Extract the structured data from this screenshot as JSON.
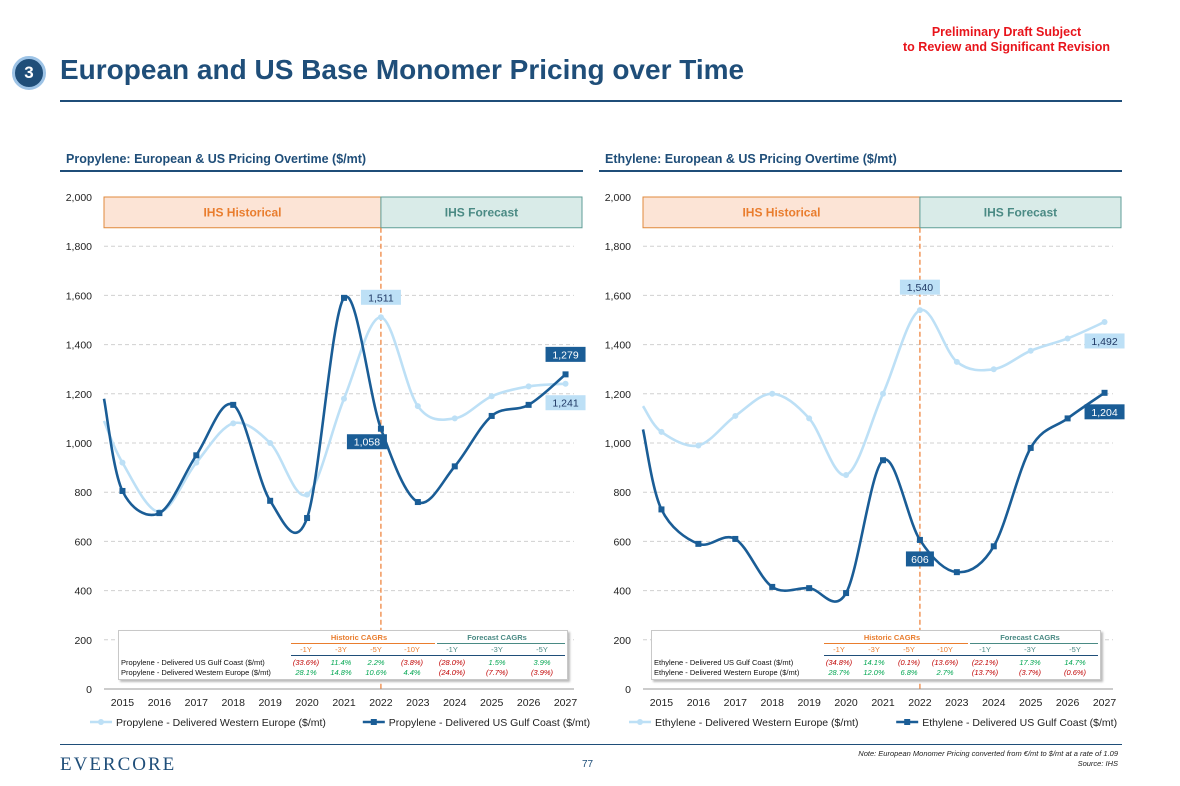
{
  "header": {
    "badge": "3",
    "title": "European and US Base Monomer Pricing over Time",
    "draft_line1": "Preliminary Draft Subject",
    "draft_line2": "to Review and Significant Revision"
  },
  "footer": {
    "logo": "EVERCORE",
    "page_number": "77",
    "note": "Note: European Monomer Pricing converted from €/mt to $/mt at a rate of 1.09",
    "source": "Source: IHS"
  },
  "cagr_headers": {
    "historic": "Historic CAGRs",
    "forecast": "Forecast CAGRs",
    "historic_periods": [
      "-1Y",
      "-3Y",
      "-5Y",
      "-10Y"
    ],
    "forecast_periods": [
      "-1Y",
      "-3Y",
      "-5Y"
    ]
  },
  "chart_data": [
    {
      "type": "line",
      "title": "Propylene: European & US Pricing Overtime ($/mt)",
      "categories": [
        "2015",
        "2016",
        "2017",
        "2018",
        "2019",
        "2020",
        "2021",
        "2022",
        "2023",
        "2024",
        "2025",
        "2026",
        "2027"
      ],
      "ylim": [
        0,
        2000
      ],
      "yticks": [
        "0",
        "200",
        "400",
        "600",
        "800",
        "1,000",
        "1,200",
        "1,400",
        "1,600",
        "1,800",
        "2,000"
      ],
      "bands": {
        "historical": "IHS Historical",
        "forecast": "IHS Forecast",
        "split_at": "2022"
      },
      "series": [
        {
          "name": "Propylene - Delivered Western Europe ($/mt)",
          "color": "#bde0f6",
          "start_value": 1090,
          "values": [
            920,
            720,
            920,
            1080,
            1000,
            790,
            1180,
            1511,
            1150,
            1100,
            1190,
            1230,
            1241
          ],
          "end_label": "1,241",
          "peak_label": "1,511"
        },
        {
          "name": "Propylene - Delivered US Gulf Coast ($/mt)",
          "color": "#1a5d96",
          "start_value": 1180,
          "values": [
            805,
            715,
            950,
            1155,
            765,
            695,
            1590,
            1058,
            760,
            905,
            1110,
            1155,
            1279
          ],
          "end_label": "1,279",
          "point_label": "1,058"
        }
      ],
      "cagr_rows": [
        {
          "name": "Propylene - Delivered US Gulf Coast ($/mt)",
          "historic": [
            "(33.6%)",
            "11.4%",
            "2.2%",
            "(3.8%)"
          ],
          "forecast": [
            "(28.0%)",
            "1.5%",
            "3.9%"
          ]
        },
        {
          "name": "Propylene - Delivered Western Europe ($/mt)",
          "historic": [
            "28.1%",
            "14.8%",
            "10.6%",
            "4.4%"
          ],
          "forecast": [
            "(24.0%)",
            "(7.7%)",
            "(3.9%)"
          ]
        }
      ]
    },
    {
      "type": "line",
      "title": "Ethylene: European & US Pricing Overtime ($/mt)",
      "categories": [
        "2015",
        "2016",
        "2017",
        "2018",
        "2019",
        "2020",
        "2021",
        "2022",
        "2023",
        "2024",
        "2025",
        "2026",
        "2027"
      ],
      "ylim": [
        0,
        2000
      ],
      "yticks": [
        "0",
        "200",
        "400",
        "600",
        "800",
        "1,000",
        "1,200",
        "1,400",
        "1,600",
        "1,800",
        "2,000"
      ],
      "bands": {
        "historical": "IHS Historical",
        "forecast": "IHS Forecast",
        "split_at": "2022"
      },
      "series": [
        {
          "name": "Ethylene - Delivered Western Europe ($/mt)",
          "color": "#bde0f6",
          "start_value": 1150,
          "values": [
            1045,
            990,
            1110,
            1200,
            1100,
            870,
            1200,
            1540,
            1330,
            1300,
            1375,
            1425,
            1492
          ],
          "end_label": "1,492",
          "peak_label": "1,540"
        },
        {
          "name": "Ethylene - Delivered US Gulf Coast ($/mt)",
          "color": "#1a5d96",
          "start_value": 1055,
          "values": [
            730,
            590,
            610,
            415,
            410,
            390,
            930,
            606,
            475,
            580,
            980,
            1100,
            1204
          ],
          "end_label": "1,204",
          "point_label": "606"
        }
      ],
      "cagr_rows": [
        {
          "name": "Ethylene - Delivered US Gulf Coast ($/mt)",
          "historic": [
            "(34.8%)",
            "14.1%",
            "(0.1%)",
            "(13.6%)"
          ],
          "forecast": [
            "(22.1%)",
            "17.3%",
            "14.7%"
          ]
        },
        {
          "name": "Ethylene - Delivered Western Europe ($/mt)",
          "historic": [
            "28.7%",
            "12.0%",
            "6.8%",
            "2.7%"
          ],
          "forecast": [
            "(13.7%)",
            "(3.7%)",
            "(0.6%)"
          ]
        }
      ]
    }
  ]
}
